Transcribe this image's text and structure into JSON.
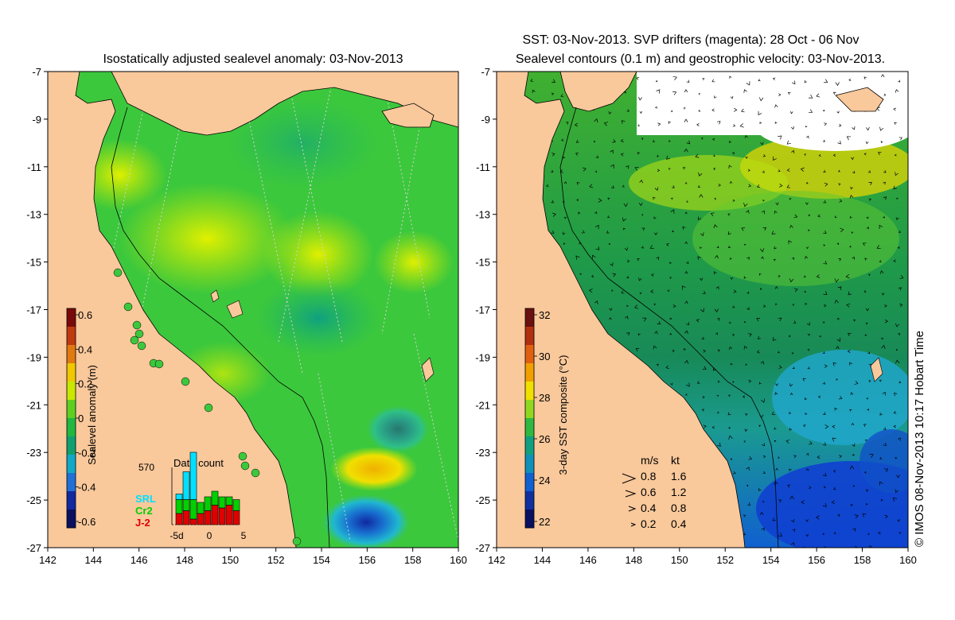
{
  "left_panel": {
    "title": "Isostatically adjusted sealevel anomaly: 03-Nov-2013",
    "colorbar": {
      "label": "Sealevel anomaly (m)",
      "ticks": [
        "0.6",
        "0.4",
        "0.2",
        "0",
        "-0.2",
        "-0.4",
        "-0.6"
      ],
      "colors": [
        "#7a0a0a",
        "#c03a10",
        "#e07a10",
        "#f0c800",
        "#c8e800",
        "#60d020",
        "#20b840",
        "#10a070",
        "#10a8c8",
        "#2070d8",
        "#1028a0",
        "#0a1060"
      ]
    },
    "data_count": {
      "title": "Data count",
      "ymax": "570",
      "legend": [
        "SRL",
        "Cr2",
        "J-2"
      ],
      "legend_colors": [
        "#00e0ff",
        "#00d000",
        "#e00000"
      ],
      "xticks": [
        "-5d",
        "0",
        "5"
      ],
      "bars": [
        {
          "day": -5,
          "srl": 0.1,
          "cr2": 0.25,
          "j2": 0.2
        },
        {
          "day": -4,
          "srl": 0.5,
          "cr2": 0.2,
          "j2": 0.25
        },
        {
          "day": -3,
          "srl": 0.85,
          "cr2": 0.35,
          "j2": 0.1
        },
        {
          "day": -2,
          "srl": 0.0,
          "cr2": 0.2,
          "j2": 0.2
        },
        {
          "day": -1,
          "srl": 0.0,
          "cr2": 0.25,
          "j2": 0.25
        },
        {
          "day": 0,
          "srl": 0.0,
          "cr2": 0.25,
          "j2": 0.35
        },
        {
          "day": 1,
          "srl": 0.0,
          "cr2": 0.2,
          "j2": 0.3
        },
        {
          "day": 2,
          "srl": 0.0,
          "cr2": 0.15,
          "j2": 0.35
        },
        {
          "day": 3,
          "srl": 0.0,
          "cr2": 0.2,
          "j2": 0.25
        }
      ]
    }
  },
  "right_panel": {
    "title_line1": "SST: 03-Nov-2013. SVP drifters (magenta): 28 Oct - 06 Nov",
    "title_line2": "Sealevel contours (0.1 m) and geostrophic velocity: 03-Nov-2013.",
    "colorbar": {
      "label": "3-day SST composite (°C)",
      "ticks": [
        "32",
        "30",
        "28",
        "26",
        "24",
        "22"
      ],
      "colors": [
        "#6a1010",
        "#b03010",
        "#e06010",
        "#f0a000",
        "#f0e000",
        "#90d820",
        "#30b840",
        "#10a080",
        "#1090b8",
        "#1060d0",
        "#1030a0",
        "#0a1060"
      ]
    },
    "velocity_legend": {
      "header_ms": "m/s",
      "header_kt": "kt",
      "rows": [
        {
          "ms": "0.8",
          "kt": "1.6"
        },
        {
          "ms": "0.6",
          "kt": "1.2"
        },
        {
          "ms": "0.4",
          "kt": "0.8"
        },
        {
          "ms": "0.2",
          "kt": "0.4"
        }
      ]
    }
  },
  "axes": {
    "x_ticks": [
      "142",
      "144",
      "146",
      "148",
      "150",
      "152",
      "154",
      "156",
      "158",
      "160"
    ],
    "y_ticks": [
      "-7",
      "-9",
      "-11",
      "-13",
      "-15",
      "-17",
      "-19",
      "-21",
      "-23",
      "-25",
      "-27"
    ]
  },
  "credit": "© IMOS 08-Nov-2013 10:17 Hobart Time",
  "colors": {
    "land": "#f9c89b",
    "ocean_base": "#3cc83c",
    "anomaly_positive": "#c8e800",
    "anomaly_negative": "#20b870",
    "sst_dark": "#1a8a50",
    "sst_cool": "#20a0c8",
    "sst_cold": "#1040d0"
  }
}
